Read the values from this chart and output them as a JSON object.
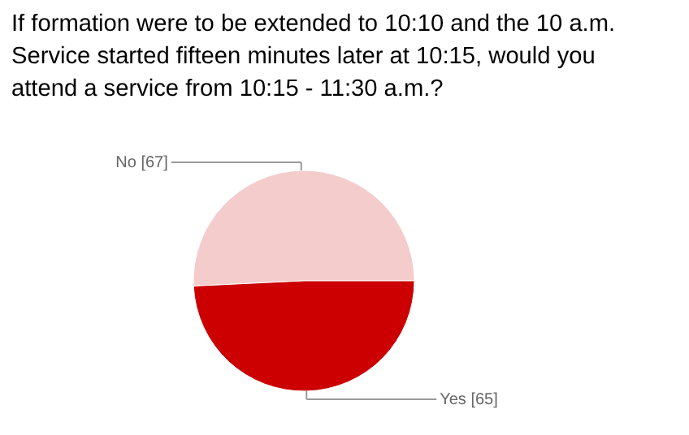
{
  "chart_data": {
    "type": "pie",
    "title": "If formation were to be extended to 10:10 and the 10 a.m. Service started fifteen minutes later at 10:15, would you attend a service from 10:15 - 11:30 a.m.?",
    "categories": [
      "No [67]",
      "Yes [65]"
    ],
    "values": [
      67,
      65
    ],
    "colors": [
      "#f4cccc",
      "#cc0000"
    ]
  }
}
